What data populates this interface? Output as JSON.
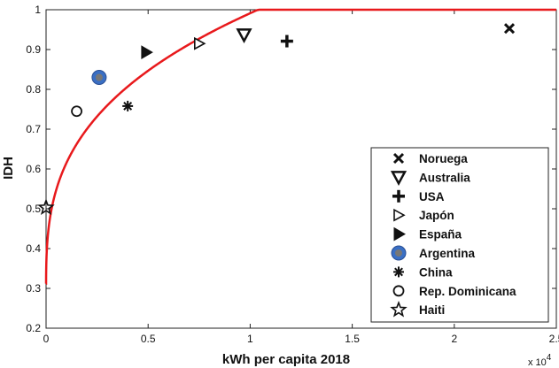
{
  "chart_data": {
    "type": "scatter",
    "title": "",
    "xlabel": "kWh per capita 2018",
    "ylabel": "IDH",
    "x_multiplier_label": "x 10",
    "x_multiplier_exponent": "4",
    "xlim": [
      0,
      25000
    ],
    "ylim": [
      0.2,
      1.0
    ],
    "x_ticks": [
      0,
      5000,
      10000,
      15000,
      20000,
      25000
    ],
    "x_tick_labels": [
      "0",
      "0.5",
      "1",
      "1.5",
      "2",
      "2.5"
    ],
    "y_ticks": [
      0.2,
      0.3,
      0.4,
      0.5,
      0.6,
      0.7,
      0.8,
      0.9,
      1.0
    ],
    "y_tick_labels": [
      "0.2",
      "0.3",
      "0.4",
      "0.5",
      "0.6",
      "0.7",
      "0.8",
      "0.9",
      "1"
    ],
    "grid": false,
    "legend_position": "bottom-right",
    "trend_color": "#e8191c",
    "points": [
      {
        "name": "Noruega",
        "marker": "x",
        "x": 22700,
        "y": 0.953
      },
      {
        "name": "Australia",
        "marker": "triangle-down",
        "x": 9700,
        "y": 0.937
      },
      {
        "name": "USA",
        "marker": "plus",
        "x": 11800,
        "y": 0.921
      },
      {
        "name": "Japón",
        "marker": "triangle-right-open",
        "x": 7500,
        "y": 0.915
      },
      {
        "name": "España",
        "marker": "triangle-right",
        "x": 4900,
        "y": 0.893
      },
      {
        "name": "Argentina",
        "marker": "circle-blue",
        "x": 2600,
        "y": 0.83,
        "color": "#3a6fc4"
      },
      {
        "name": "China",
        "marker": "asterisk",
        "x": 4000,
        "y": 0.758
      },
      {
        "name": "Rep. Dominicana",
        "marker": "circle-open",
        "x": 1500,
        "y": 0.745
      },
      {
        "name": "Haiti",
        "marker": "star",
        "x": 0,
        "y": 0.503
      }
    ]
  }
}
